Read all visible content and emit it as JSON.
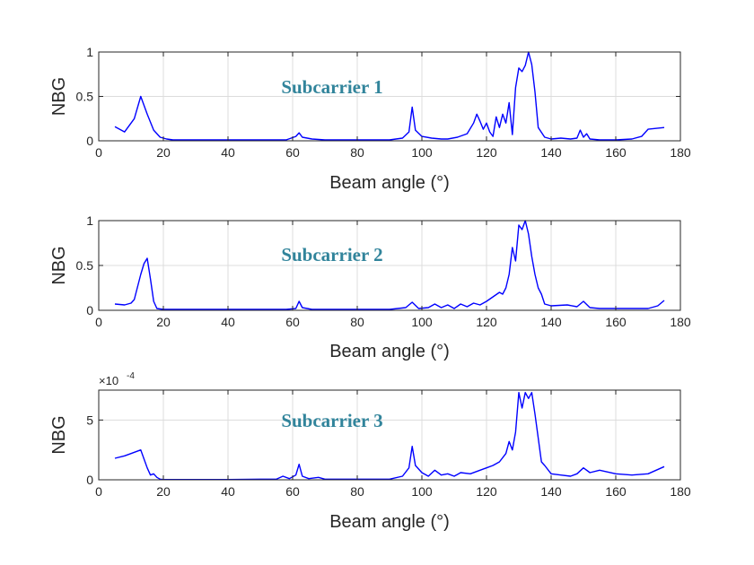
{
  "colors": {
    "series": "#0000ff",
    "title": "#31849b",
    "axis": "#262626",
    "grid": "#dcdcdc"
  },
  "chart_data": [
    {
      "type": "line",
      "annotation": "Subcarrier 1",
      "xlabel": "Beam angle (°)",
      "ylabel": "NBG",
      "xlim": [
        0,
        180
      ],
      "ylim": [
        0,
        1
      ],
      "xticks": [
        0,
        20,
        40,
        60,
        80,
        100,
        120,
        140,
        160,
        180
      ],
      "yticks": [
        0,
        0.5,
        1
      ],
      "grid": true,
      "series": [
        {
          "x": [
            5,
            8,
            11,
            13,
            15,
            17,
            19,
            21,
            23,
            26,
            30,
            40,
            50,
            58,
            61,
            62,
            63,
            66,
            70,
            80,
            90,
            94,
            96,
            97,
            98,
            100,
            103,
            106,
            108,
            111,
            114,
            116,
            117,
            118,
            119,
            120,
            121,
            122,
            123,
            124,
            125,
            126,
            127,
            128,
            129,
            130,
            131,
            132,
            133,
            134,
            135,
            136,
            138,
            140,
            143,
            146,
            148,
            149,
            150,
            151,
            152,
            155,
            160,
            165,
            168,
            170,
            175
          ],
          "y": [
            0.16,
            0.1,
            0.25,
            0.5,
            0.3,
            0.12,
            0.04,
            0.02,
            0.01,
            0.01,
            0.01,
            0.01,
            0.01,
            0.01,
            0.05,
            0.09,
            0.04,
            0.02,
            0.01,
            0.01,
            0.01,
            0.03,
            0.1,
            0.38,
            0.12,
            0.05,
            0.03,
            0.02,
            0.02,
            0.04,
            0.08,
            0.2,
            0.3,
            0.22,
            0.13,
            0.2,
            0.1,
            0.05,
            0.27,
            0.15,
            0.3,
            0.2,
            0.43,
            0.07,
            0.6,
            0.82,
            0.78,
            0.85,
            1.0,
            0.86,
            0.55,
            0.15,
            0.04,
            0.02,
            0.03,
            0.02,
            0.03,
            0.12,
            0.04,
            0.08,
            0.02,
            0.01,
            0.01,
            0.02,
            0.05,
            0.13,
            0.15
          ]
        }
      ]
    },
    {
      "type": "line",
      "annotation": "Subcarrier 2",
      "xlabel": "Beam angle (°)",
      "ylabel": "NBG",
      "xlim": [
        0,
        180
      ],
      "ylim": [
        0,
        1
      ],
      "xticks": [
        0,
        20,
        40,
        60,
        80,
        100,
        120,
        140,
        160,
        180
      ],
      "yticks": [
        0,
        0.5,
        1
      ],
      "grid": true,
      "series": [
        {
          "x": [
            5,
            8,
            10,
            11,
            13,
            14,
            15,
            16,
            17,
            18,
            20,
            25,
            30,
            40,
            50,
            58,
            61,
            62,
            63,
            66,
            70,
            80,
            90,
            95,
            97,
            99,
            102,
            104,
            106,
            108,
            110,
            112,
            114,
            116,
            118,
            120,
            122,
            124,
            125,
            126,
            127,
            128,
            129,
            130,
            131,
            132,
            133,
            134,
            135,
            136,
            137,
            138,
            140,
            145,
            148,
            150,
            152,
            155,
            160,
            165,
            170,
            173,
            175
          ],
          "y": [
            0.07,
            0.06,
            0.08,
            0.12,
            0.4,
            0.52,
            0.58,
            0.35,
            0.1,
            0.02,
            0.01,
            0.01,
            0.01,
            0.01,
            0.01,
            0.01,
            0.02,
            0.1,
            0.03,
            0.01,
            0.01,
            0.01,
            0.01,
            0.03,
            0.09,
            0.02,
            0.03,
            0.07,
            0.03,
            0.06,
            0.02,
            0.07,
            0.04,
            0.08,
            0.06,
            0.1,
            0.15,
            0.2,
            0.18,
            0.25,
            0.4,
            0.7,
            0.55,
            0.95,
            0.9,
            1.0,
            0.85,
            0.6,
            0.4,
            0.25,
            0.18,
            0.07,
            0.05,
            0.06,
            0.04,
            0.1,
            0.03,
            0.02,
            0.02,
            0.02,
            0.02,
            0.05,
            0.11
          ]
        }
      ]
    },
    {
      "type": "line",
      "annotation": "Subcarrier 3",
      "xlabel": "Beam angle (°)",
      "ylabel": "NBG",
      "multiplier": "×10",
      "multiplier_exponent": "-4",
      "xlim": [
        0,
        180
      ],
      "ylim": [
        0,
        7.5
      ],
      "xticks": [
        0,
        20,
        40,
        60,
        80,
        100,
        120,
        140,
        160,
        180
      ],
      "yticks": [
        0,
        5
      ],
      "grid": true,
      "series": [
        {
          "x": [
            5,
            8,
            10,
            13,
            15,
            16,
            17,
            18,
            19,
            20,
            30,
            40,
            50,
            55,
            57,
            59,
            61,
            62,
            63,
            65,
            68,
            70,
            80,
            90,
            94,
            96,
            97,
            98,
            100,
            102,
            104,
            106,
            108,
            110,
            112,
            115,
            118,
            120,
            122,
            124,
            126,
            127,
            128,
            129,
            130,
            131,
            132,
            133,
            134,
            135,
            136,
            137,
            138,
            140,
            143,
            146,
            148,
            150,
            152,
            155,
            160,
            165,
            170,
            175
          ],
          "y": [
            1.8,
            2.0,
            2.2,
            2.5,
            1.0,
            0.4,
            0.5,
            0.2,
            0.05,
            0.02,
            0.02,
            0.02,
            0.05,
            0.05,
            0.3,
            0.1,
            0.4,
            1.3,
            0.3,
            0.1,
            0.2,
            0.05,
            0.05,
            0.05,
            0.3,
            1.0,
            2.8,
            1.2,
            0.6,
            0.3,
            0.8,
            0.4,
            0.5,
            0.3,
            0.6,
            0.5,
            0.8,
            1.0,
            1.2,
            1.5,
            2.2,
            3.2,
            2.5,
            4.0,
            7.3,
            6.0,
            7.3,
            6.8,
            7.3,
            5.5,
            3.5,
            1.5,
            1.2,
            0.5,
            0.4,
            0.3,
            0.5,
            1.0,
            0.6,
            0.8,
            0.5,
            0.4,
            0.5,
            1.1
          ]
        }
      ]
    }
  ]
}
